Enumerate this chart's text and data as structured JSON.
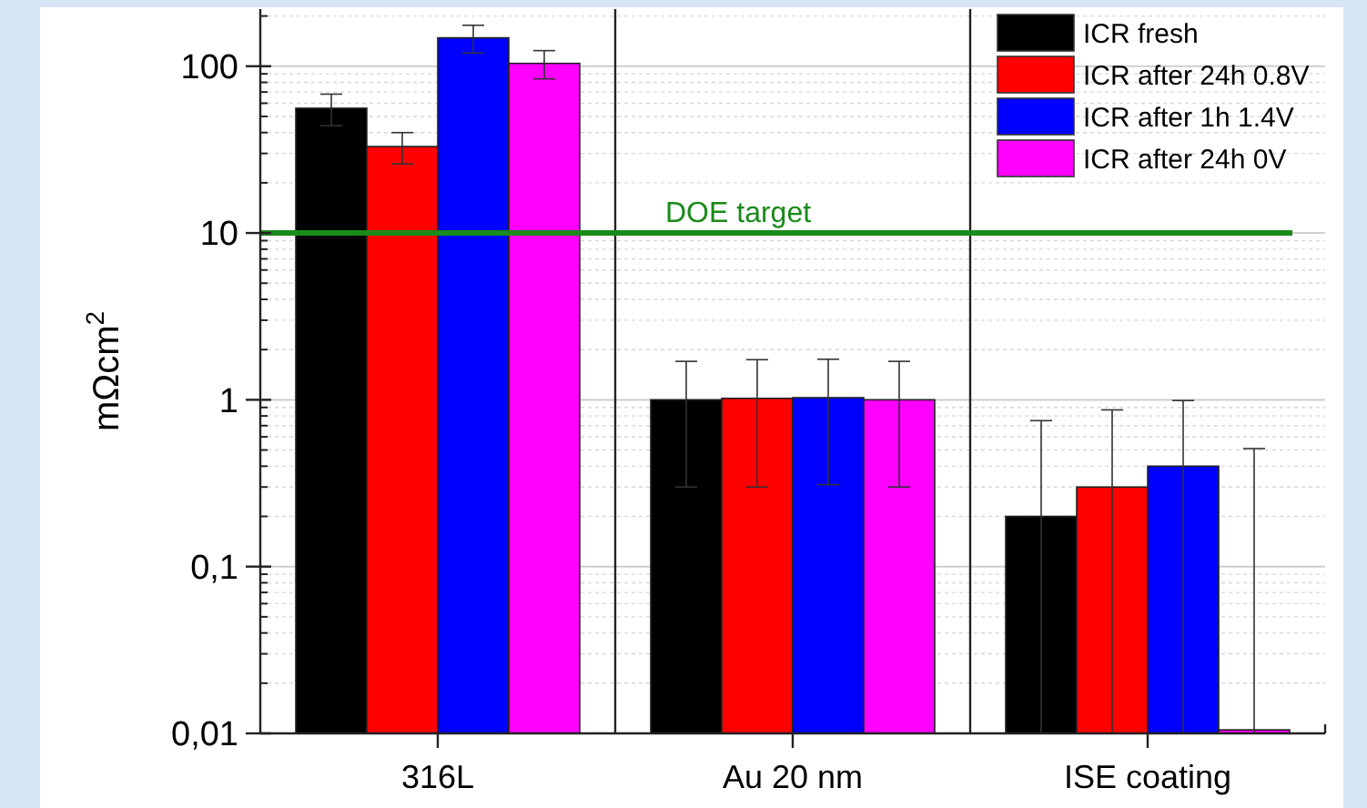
{
  "chart_data": {
    "type": "bar",
    "ylabel": "mΩcm$^{2}$",
    "categories": [
      "316L",
      "Au 20 nm",
      "ISE coating"
    ],
    "series": [
      {
        "name": "ICR fresh",
        "color": "#000000",
        "values": [
          56,
          1.0,
          0.2
        ],
        "errors": [
          12,
          0.7,
          [
            0.01,
            0.75
          ]
        ]
      },
      {
        "name": "ICR after 24h 0.8V",
        "color": "#ff0000",
        "values": [
          33,
          1.02,
          0.3
        ],
        "errors": [
          7,
          0.72,
          [
            0.01,
            0.87
          ]
        ]
      },
      {
        "name": "ICR after 1h 1.4V",
        "color": "#0000ff",
        "values": [
          148,
          1.03,
          0.4
        ],
        "errors": [
          28,
          0.72,
          [
            0.01,
            0.99
          ]
        ]
      },
      {
        "name": "ICR after 24h 0V",
        "color": "#ff00ff",
        "values": [
          104,
          1.0,
          0.0105
        ],
        "errors": [
          20,
          0.7,
          [
            0.01,
            0.51
          ]
        ]
      }
    ],
    "log": true,
    "ylim": [
      0.01,
      220
    ],
    "yticks": [
      {
        "value": 0.01,
        "label": "0,01"
      },
      {
        "value": 0.1,
        "label": "0,1"
      },
      1,
      10,
      100
    ],
    "grid": true,
    "legend": "top right",
    "ref_lines": [
      {
        "axis": "y",
        "value": 10,
        "label": "DOE target",
        "color": "#1a8a1a"
      }
    ]
  }
}
